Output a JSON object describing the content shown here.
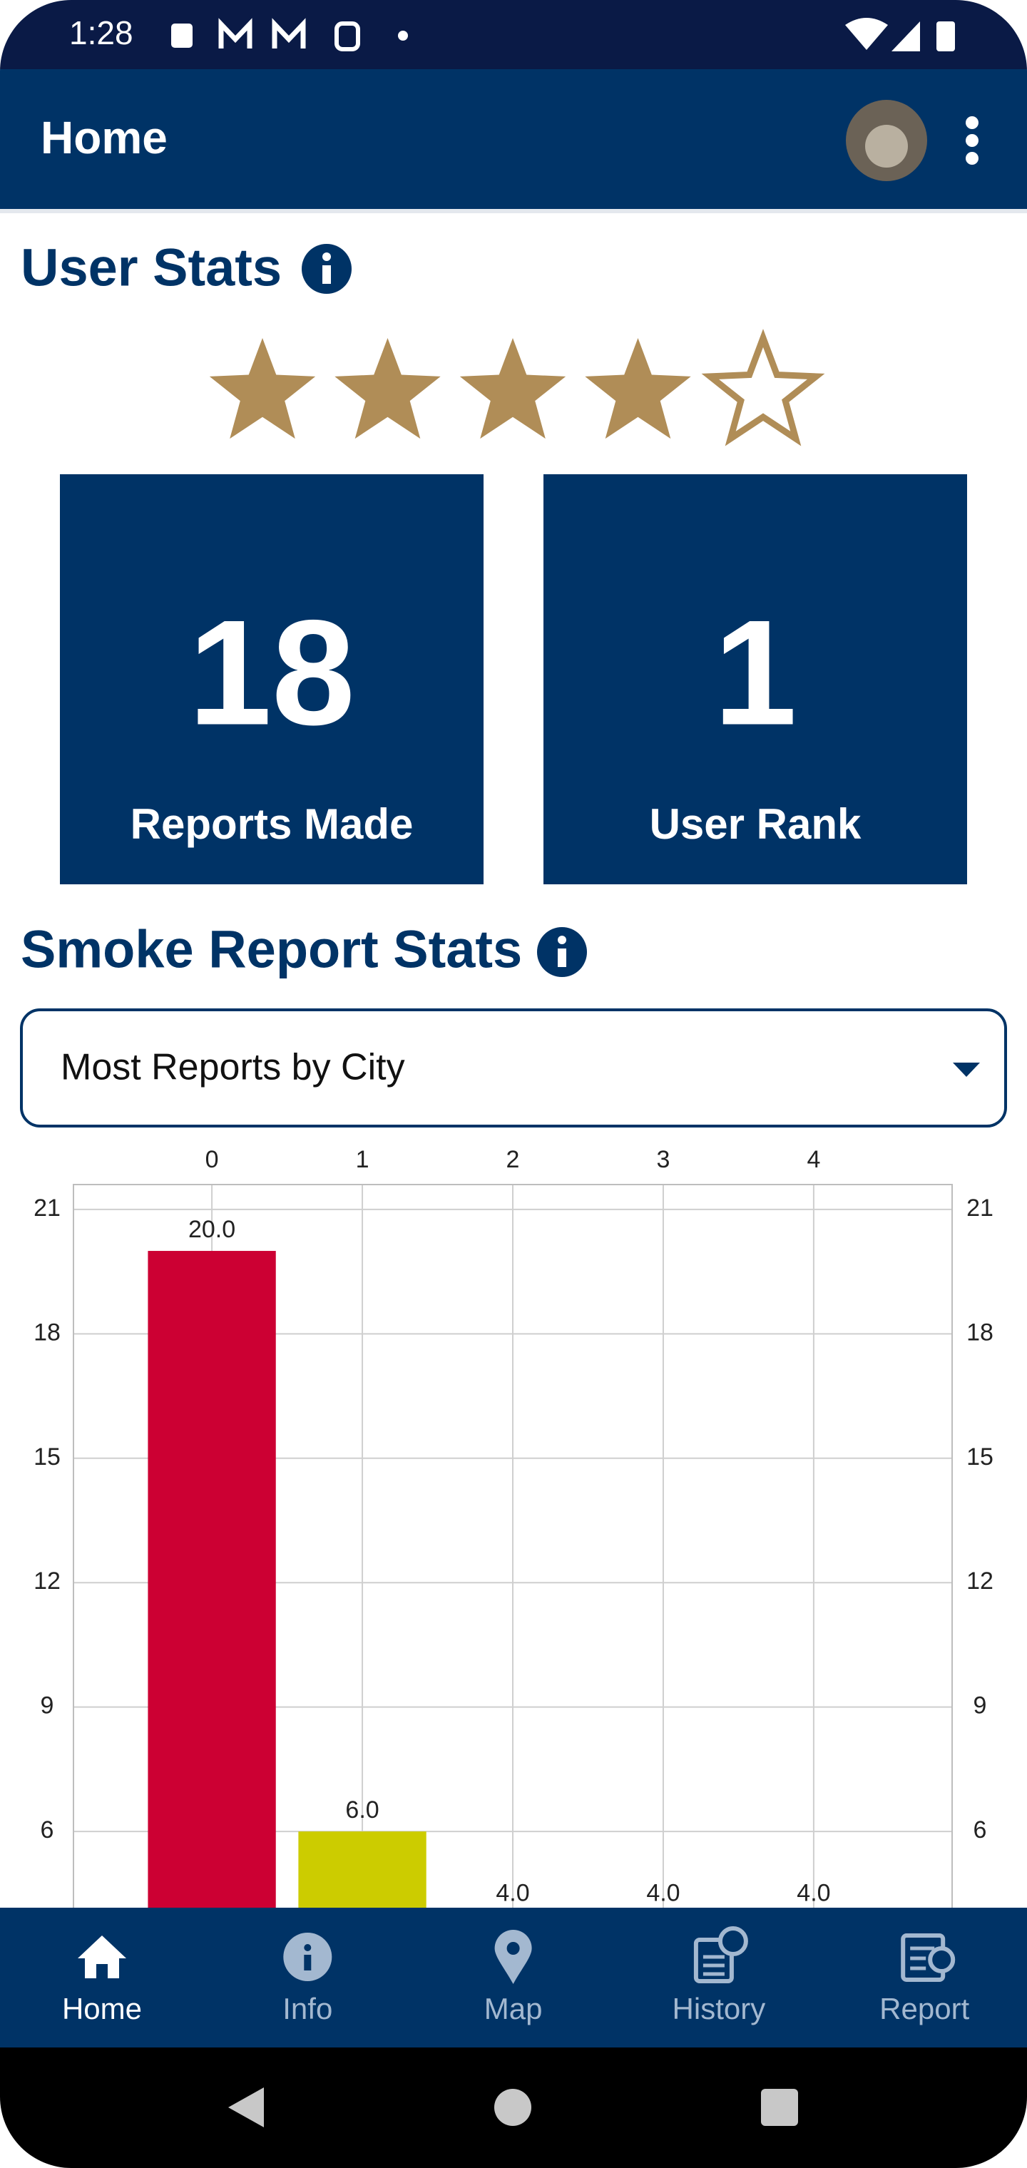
{
  "status_bar": {
    "time": "1:28"
  },
  "app_bar": {
    "title": "Home"
  },
  "user_stats": {
    "title": "User Stats",
    "rating": 4,
    "rating_max": 5,
    "cards": [
      {
        "value": 18,
        "label": "Reports Made"
      },
      {
        "value": 1,
        "label": "User Rank"
      }
    ]
  },
  "smoke_stats": {
    "title": "Smoke Report Stats",
    "dropdown": "Most Reports by City"
  },
  "chart_data": {
    "type": "bar",
    "x": [
      0,
      1,
      2,
      3,
      4
    ],
    "values": [
      20,
      6,
      4,
      4,
      4
    ],
    "value_labels": [
      "20.0",
      "6.0",
      "4.0",
      "4.0",
      "4.0"
    ],
    "colors": [
      "#cc0033",
      "#cccc00",
      null,
      null,
      null
    ],
    "xlim": [
      -0.92,
      4.92
    ],
    "xticks": [
      0,
      1,
      2,
      3,
      4
    ],
    "ylim": [
      0,
      21.6
    ],
    "yticks": [
      6,
      9,
      12,
      15,
      18,
      21
    ],
    "y2lim": [
      0,
      21.6
    ],
    "y2ticks": [
      6,
      9,
      12,
      15,
      18,
      21
    ],
    "grid": true
  },
  "nav": {
    "items": [
      "Home",
      "Info",
      "Map",
      "History",
      "Report"
    ],
    "active": 0
  }
}
